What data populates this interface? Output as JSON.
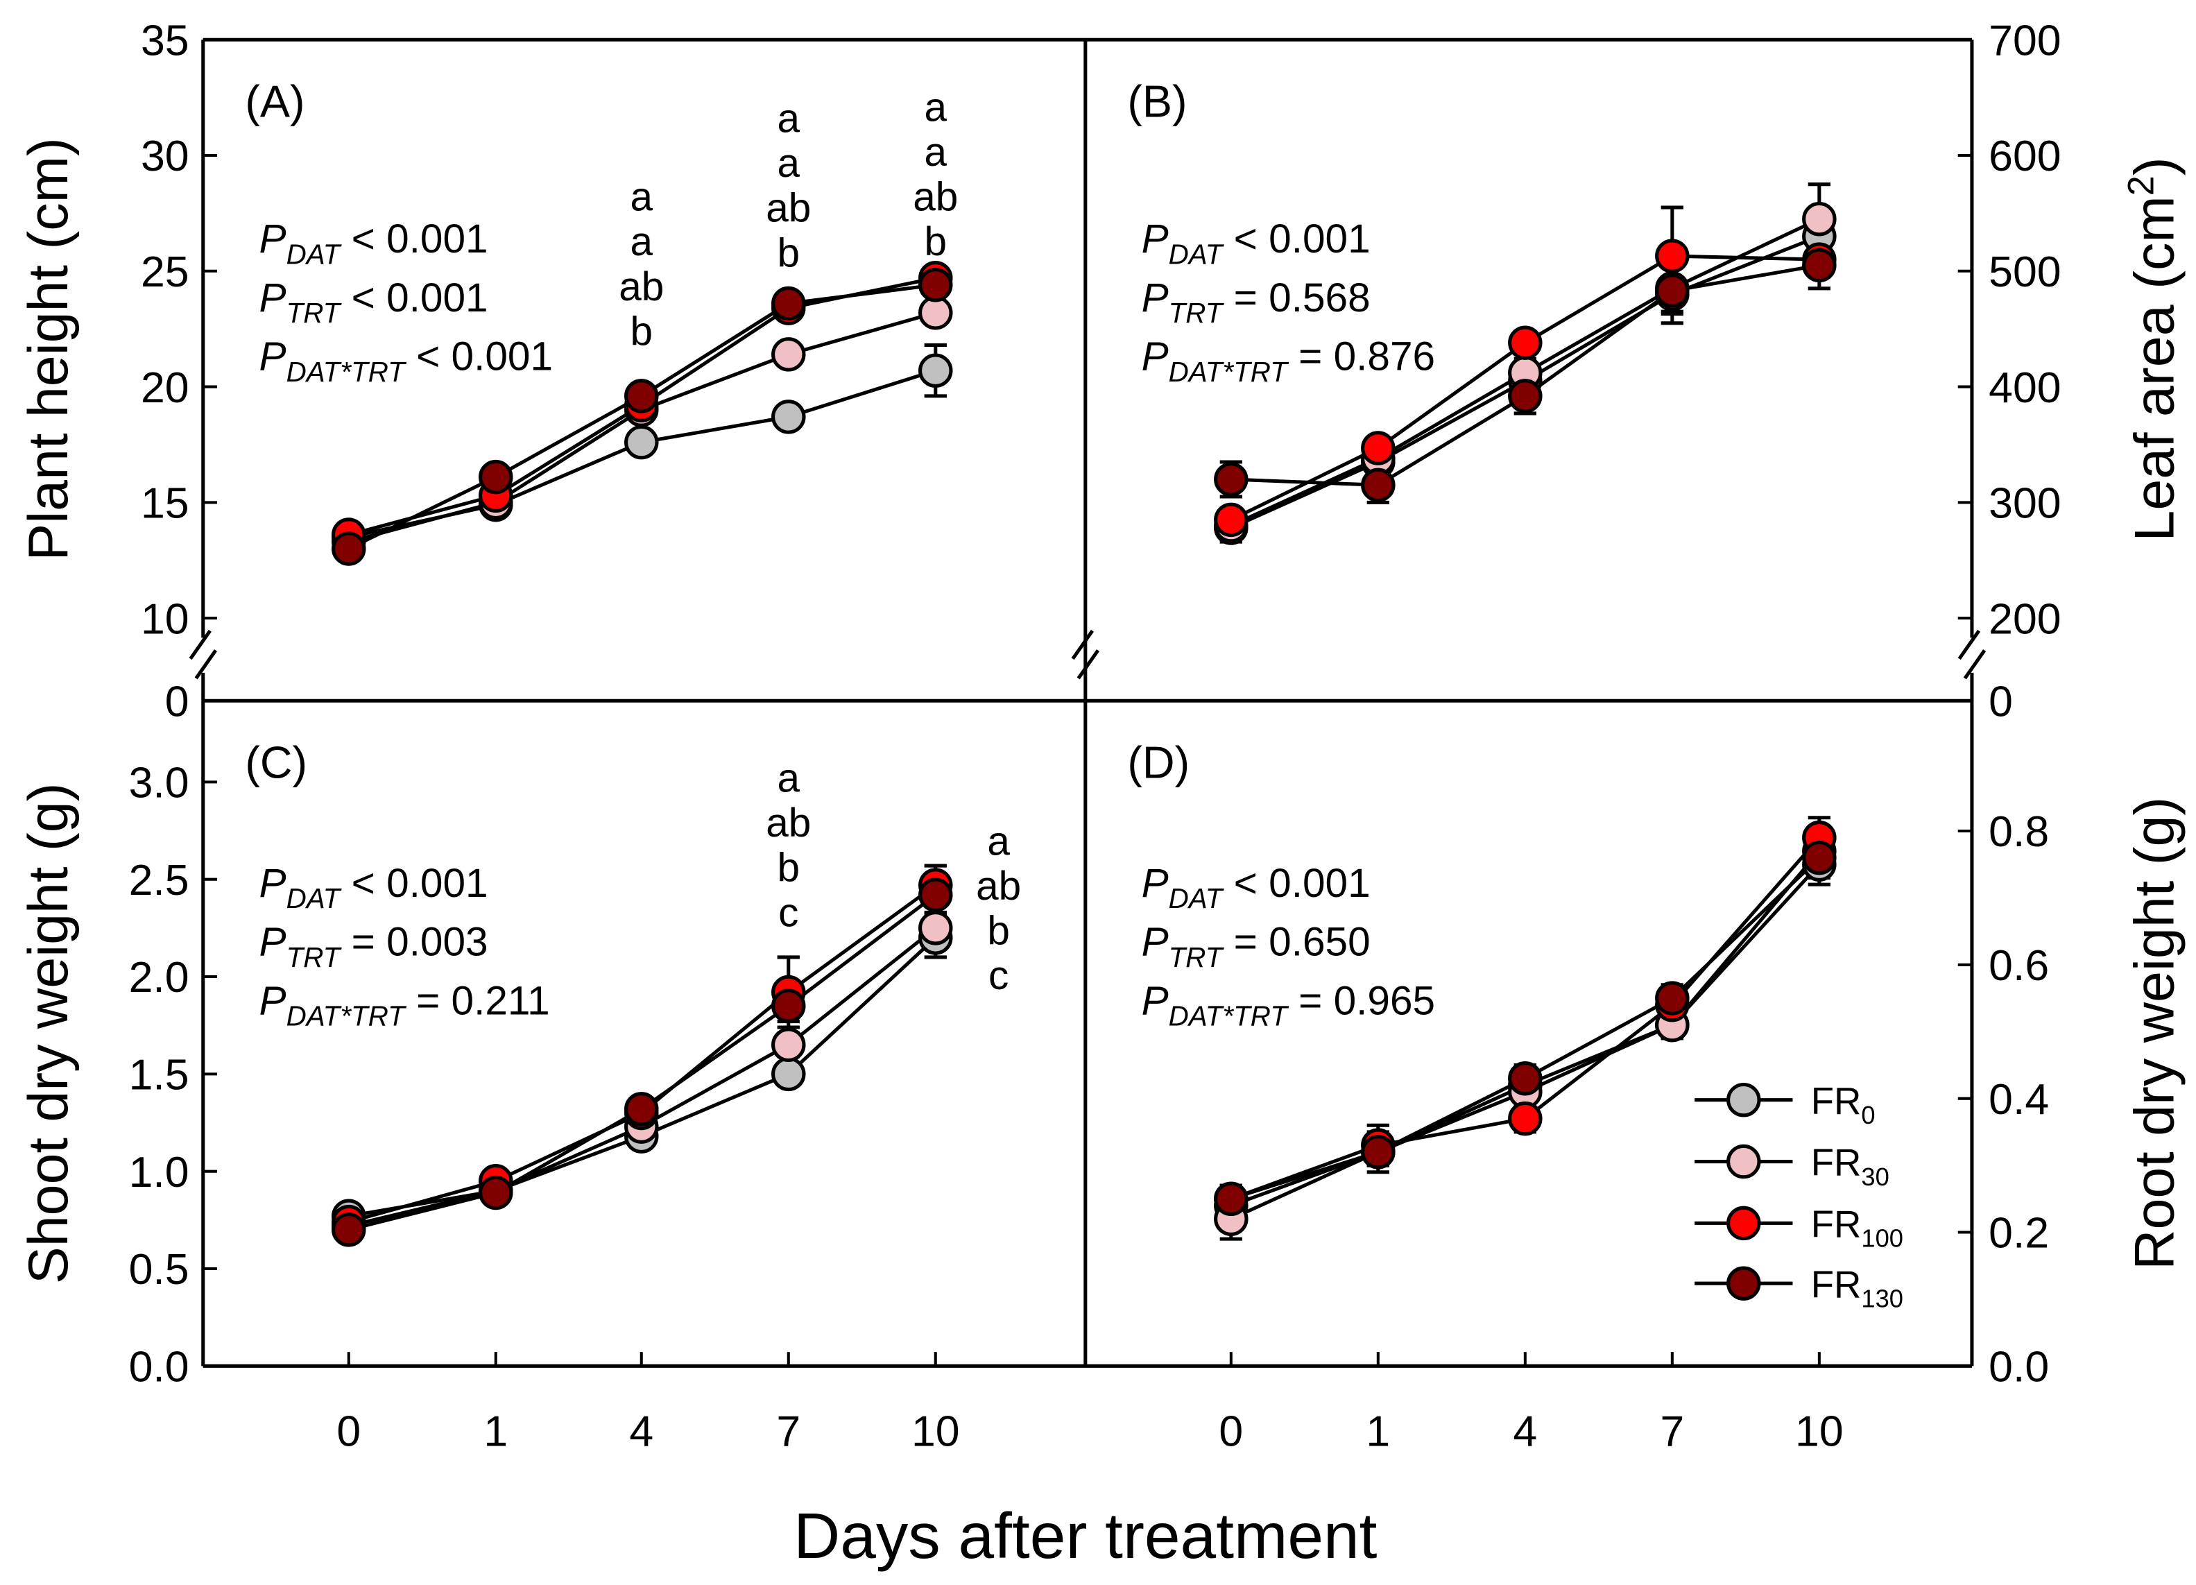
{
  "chart_data": {
    "type": "line",
    "xlabel": "Days after treatment",
    "x": [
      "0",
      "1",
      "4",
      "7",
      "10"
    ],
    "series_styles": [
      {
        "name": "FR0",
        "base": "FR",
        "sub": "0",
        "color": "#c0c0c0"
      },
      {
        "name": "FR30",
        "base": "FR",
        "sub": "30",
        "color": "#f0c0c4"
      },
      {
        "name": "FR100",
        "base": "FR",
        "sub": "100",
        "color": "#ff0000"
      },
      {
        "name": "FR130",
        "base": "FR",
        "sub": "130",
        "color": "#800000"
      }
    ],
    "legend_position": "bottom-right of panel D",
    "panels": [
      {
        "label": "(A)",
        "ylabel": "Plant height (cm)",
        "ylim": [
          10,
          35
        ],
        "yticks": [
          "10",
          "15",
          "20",
          "25",
          "30",
          "35"
        ],
        "axis_break_zero": "0",
        "y_side": "left",
        "stats": [
          {
            "sub": "DAT",
            "text": " < 0.001"
          },
          {
            "sub": "TRT",
            "text": " < 0.001"
          },
          {
            "sub": "DAT*TRT",
            "text": " < 0.001"
          }
        ],
        "series": [
          {
            "name": "FR0",
            "values": [
              13.5,
              14.9,
              17.6,
              18.7,
              20.7
            ],
            "err": [
              0.3,
              0.2,
              0.3,
              0.3,
              1.1
            ]
          },
          {
            "name": "FR30",
            "values": [
              13.3,
              15.0,
              19.0,
              21.4,
              23.2
            ],
            "err": [
              0.3,
              0.2,
              0.3,
              0.3,
              0.4
            ]
          },
          {
            "name": "FR100",
            "values": [
              13.6,
              15.3,
              19.2,
              23.4,
              24.7
            ],
            "err": [
              0.5,
              0.3,
              0.4,
              0.3,
              0.3
            ]
          },
          {
            "name": "FR130",
            "values": [
              13.0,
              16.1,
              19.6,
              23.6,
              24.4
            ],
            "err": [
              0.3,
              0.2,
              0.3,
              0.3,
              0.3
            ]
          }
        ],
        "letters": [
          {
            "x": "4",
            "labels": [
              "a",
              "a",
              "ab",
              "b"
            ]
          },
          {
            "x": "7",
            "labels": [
              "a",
              "a",
              "ab",
              "b"
            ]
          },
          {
            "x": "10",
            "labels": [
              "a",
              "a",
              "ab",
              "b"
            ]
          }
        ]
      },
      {
        "label": "(B)",
        "ylabel": "Leaf area (cm2)",
        "ylabel_base": "Leaf area (cm",
        "ylabel_sup": "2",
        "ylabel_end": ")",
        "ylim": [
          200,
          700
        ],
        "yticks": [
          "200",
          "300",
          "400",
          "500",
          "600",
          "700"
        ],
        "axis_break_zero": "0",
        "y_side": "right",
        "stats": [
          {
            "sub": "DAT",
            "text": " < 0.001"
          },
          {
            "sub": "TRT",
            "text": " = 0.568"
          },
          {
            "sub": "DAT*TRT",
            "text": " = 0.876"
          }
        ],
        "series": [
          {
            "name": "FR0",
            "values": [
              278,
              335,
              405,
              480,
              530
            ],
            "err": [
              12,
              10,
              12,
              25,
              20
            ]
          },
          {
            "name": "FR30",
            "values": [
              280,
              338,
              412,
              485,
              545
            ],
            "err": [
              12,
              10,
              12,
              20,
              30
            ]
          },
          {
            "name": "FR100",
            "values": [
              285,
              347,
              438,
              513,
              510
            ],
            "err": [
              10,
              8,
              10,
              42,
              15
            ]
          },
          {
            "name": "FR130",
            "values": [
              320,
              315,
              392,
              483,
              505
            ],
            "err": [
              15,
              15,
              15,
              20,
              20
            ]
          }
        ],
        "letters": []
      },
      {
        "label": "(C)",
        "ylabel": "Shoot dry weight (g)",
        "ylim": [
          0,
          3.42
        ],
        "yticks": [
          "0.0",
          "0.5",
          "1.0",
          "1.5",
          "2.0",
          "2.5",
          "3.0"
        ],
        "y_side": "left",
        "stats": [
          {
            "sub": "DAT",
            "text": " < 0.001"
          },
          {
            "sub": "TRT",
            "text": " = 0.003"
          },
          {
            "sub": "DAT*TRT",
            "text": " = 0.211"
          }
        ],
        "series": [
          {
            "name": "FR0",
            "values": [
              0.77,
              0.9,
              1.18,
              1.5,
              2.2
            ],
            "err": [
              0.03,
              0.03,
              0.04,
              0.05,
              0.1
            ]
          },
          {
            "name": "FR30",
            "values": [
              0.72,
              0.9,
              1.23,
              1.65,
              2.25
            ],
            "err": [
              0.03,
              0.03,
              0.04,
              0.06,
              0.08
            ]
          },
          {
            "name": "FR100",
            "values": [
              0.74,
              0.95,
              1.3,
              1.92,
              2.47
            ],
            "err": [
              0.03,
              0.03,
              0.04,
              0.18,
              0.1
            ]
          },
          {
            "name": "FR130",
            "values": [
              0.7,
              0.89,
              1.32,
              1.85,
              2.42
            ],
            "err": [
              0.03,
              0.03,
              0.04,
              0.08,
              0.1
            ]
          }
        ],
        "letters": [
          {
            "x": "7",
            "labels": [
              "a",
              "ab",
              "b",
              "c"
            ]
          },
          {
            "x": "10",
            "labels": [
              "a",
              "ab",
              "b",
              "c"
            ]
          }
        ]
      },
      {
        "label": "(D)",
        "ylabel": "Root dry weight (g)",
        "ylim": [
          0,
          0.995
        ],
        "yticks": [
          "0.0",
          "0.2",
          "0.4",
          "0.6",
          "0.8"
        ],
        "axis_top_zero": "0",
        "y_side": "right",
        "stats": [
          {
            "sub": "DAT",
            "text": " < 0.001"
          },
          {
            "sub": "TRT",
            "text": " = 0.650"
          },
          {
            "sub": "DAT*TRT",
            "text": " = 0.965"
          }
        ],
        "series": [
          {
            "name": "FR0",
            "values": [
              0.24,
              0.32,
              0.42,
              0.51,
              0.75
            ],
            "err": [
              0.02,
              0.02,
              0.02,
              0.02,
              0.03
            ]
          },
          {
            "name": "FR30",
            "values": [
              0.22,
              0.32,
              0.41,
              0.51,
              0.77
            ],
            "err": [
              0.03,
              0.02,
              0.02,
              0.02,
              0.03
            ]
          },
          {
            "name": "FR100",
            "values": [
              0.25,
              0.33,
              0.37,
              0.54,
              0.79
            ],
            "err": [
              0.02,
              0.03,
              0.02,
              0.02,
              0.03
            ]
          },
          {
            "name": "FR130",
            "values": [
              0.25,
              0.32,
              0.43,
              0.55,
              0.76
            ],
            "err": [
              0.02,
              0.03,
              0.02,
              0.02,
              0.03
            ]
          }
        ],
        "letters": []
      }
    ]
  }
}
